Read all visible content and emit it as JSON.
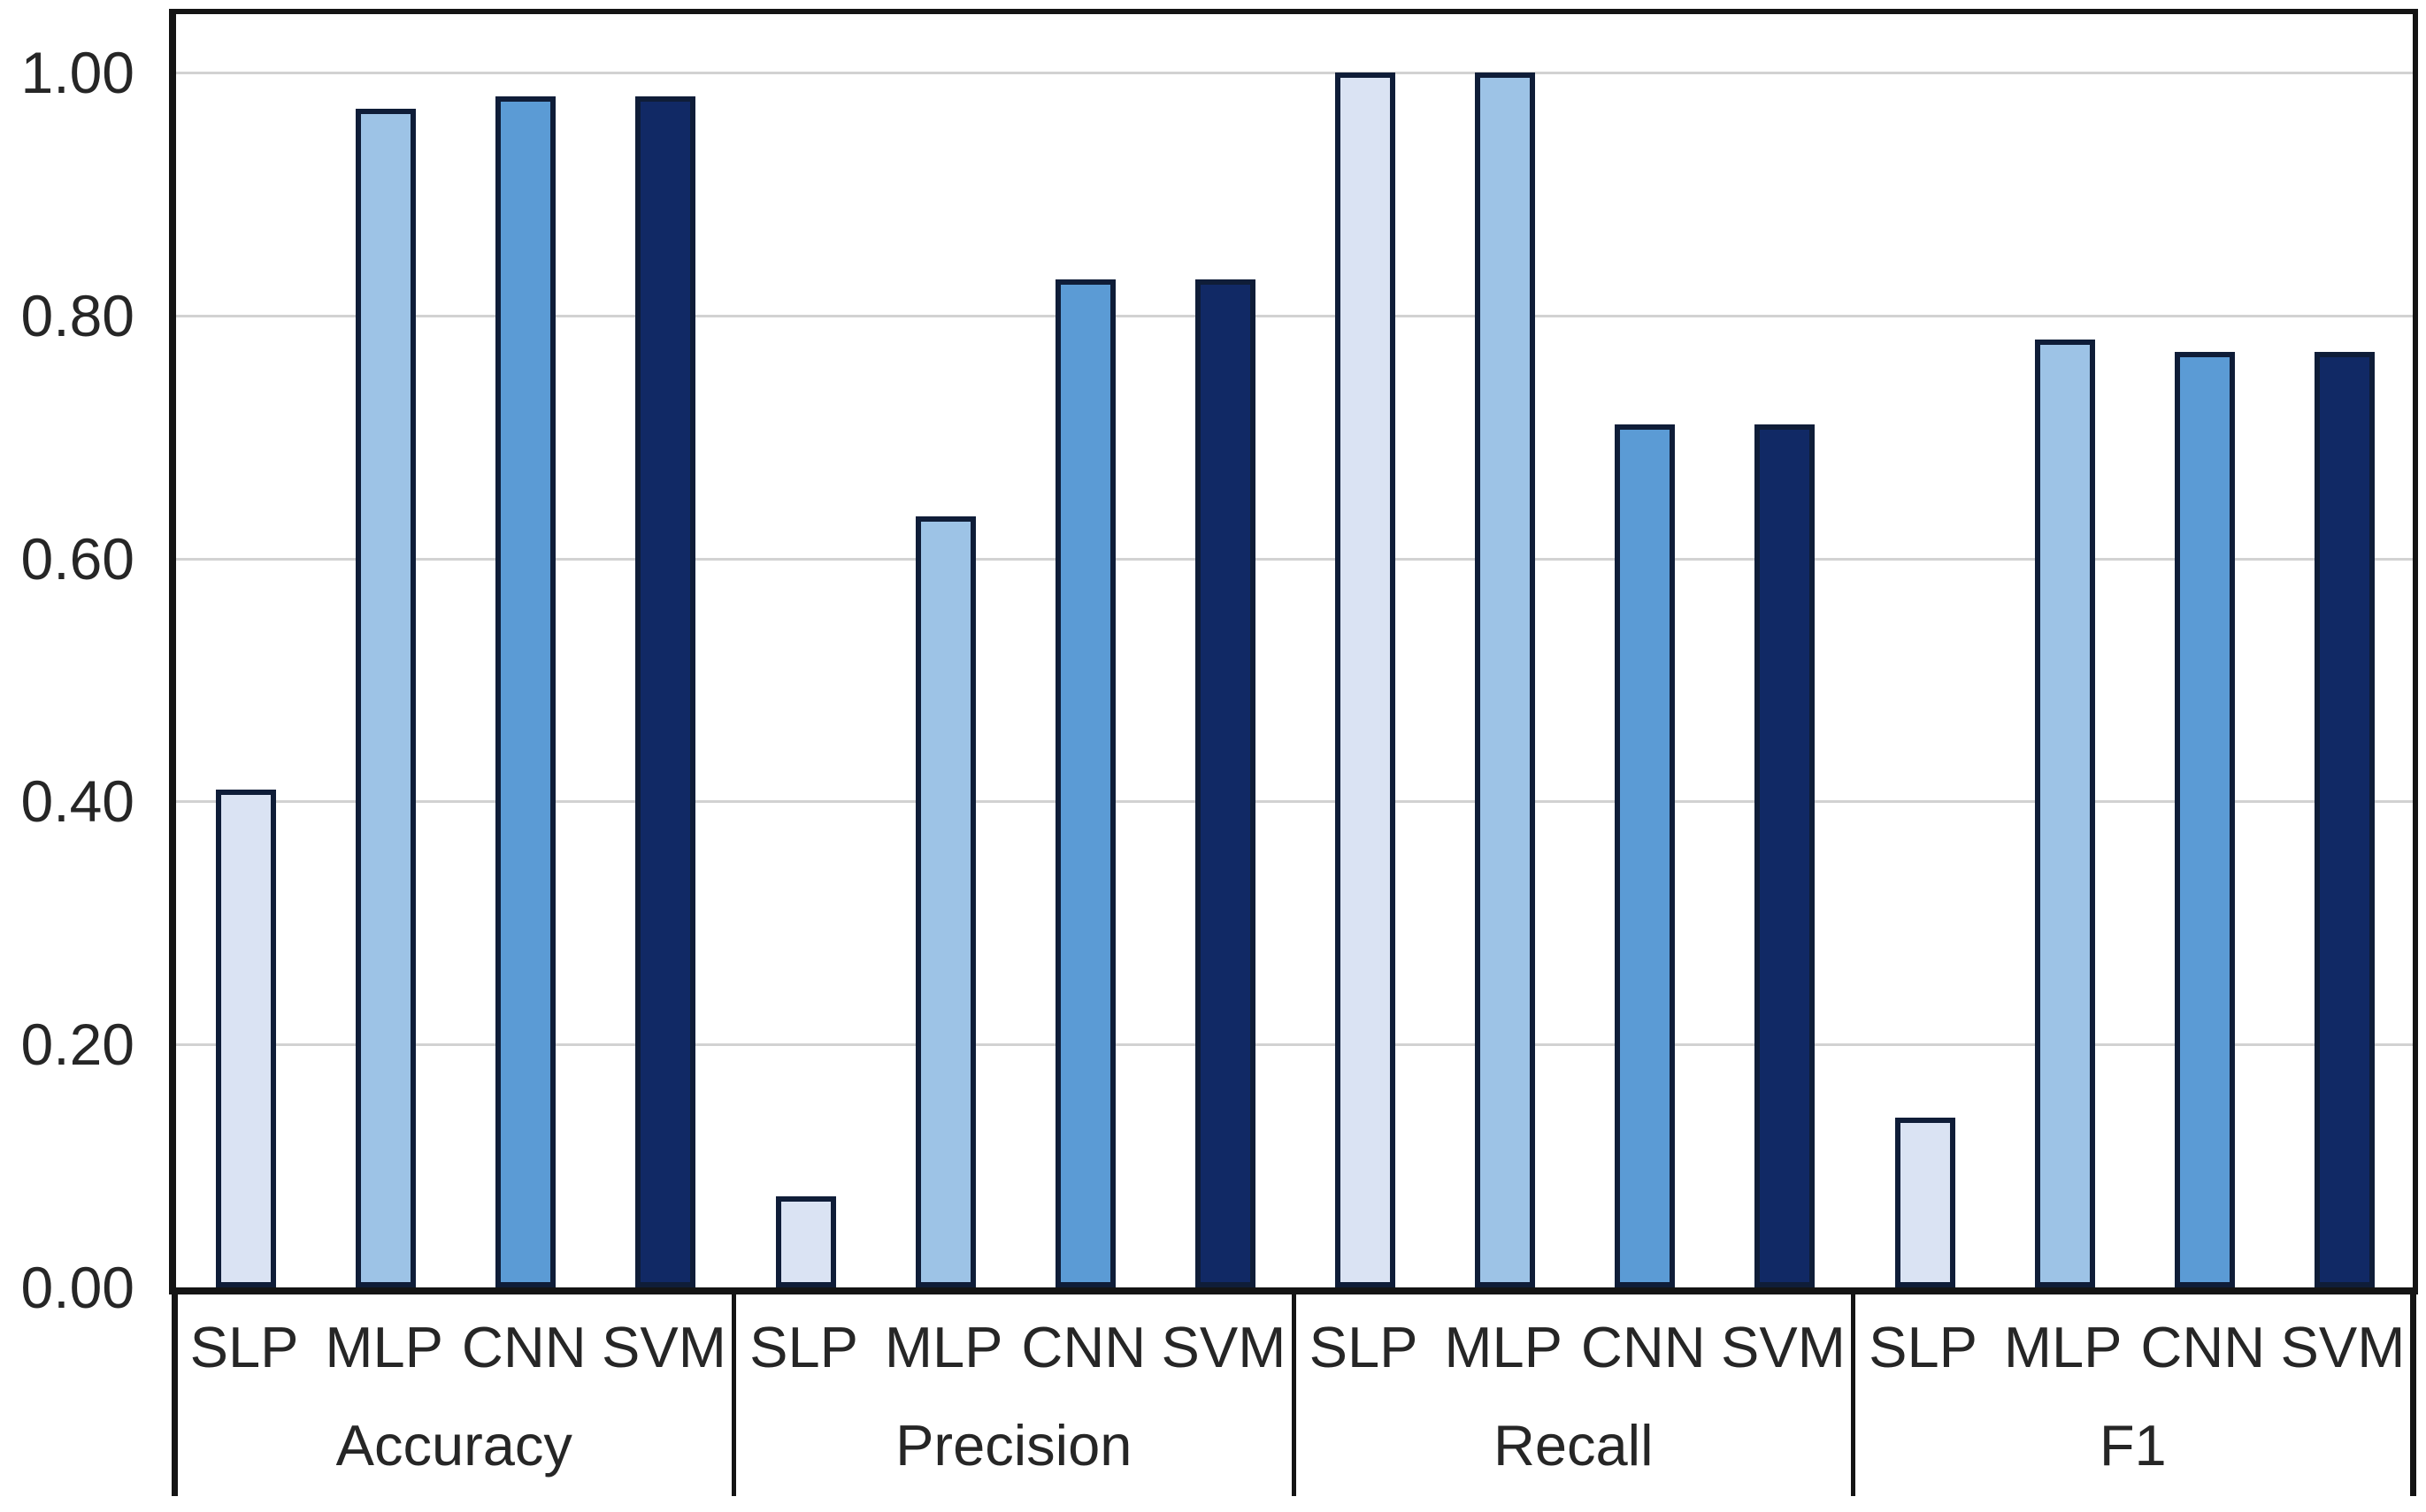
{
  "chart_data": {
    "type": "bar",
    "title": "",
    "xlabel": "",
    "ylabel": "",
    "grid": "horizontal-gridlines",
    "legend": "none",
    "ylim": [
      0,
      1.05
    ],
    "y_ticks": [
      {
        "value": 0.0,
        "label": "0.00"
      },
      {
        "value": 0.2,
        "label": "0.20"
      },
      {
        "value": 0.4,
        "label": "0.40"
      },
      {
        "value": 0.6,
        "label": "0.60"
      },
      {
        "value": 0.8,
        "label": "0.80"
      },
      {
        "value": 1.0,
        "label": "1.00"
      }
    ],
    "categories": [
      "Accuracy",
      "Precision",
      "Recall",
      "F1"
    ],
    "series": [
      {
        "name": "SLP",
        "color": "#dae3f3",
        "values": [
          0.41,
          0.075,
          1.0,
          0.14
        ]
      },
      {
        "name": "MLP",
        "color": "#9dc3e6",
        "values": [
          0.97,
          0.635,
          1.0,
          0.78
        ]
      },
      {
        "name": "CNN",
        "color": "#5b9bd5",
        "values": [
          0.98,
          0.83,
          0.71,
          0.77
        ]
      },
      {
        "name": "SVM",
        "color": "#112965",
        "values": [
          0.98,
          0.83,
          0.71,
          0.77
        ]
      }
    ],
    "colors": {
      "bar_border": "#0f1d38",
      "gridline": "#d2d2d2",
      "axis": "#141414",
      "text": "#262626",
      "background": "#ffffff"
    }
  }
}
